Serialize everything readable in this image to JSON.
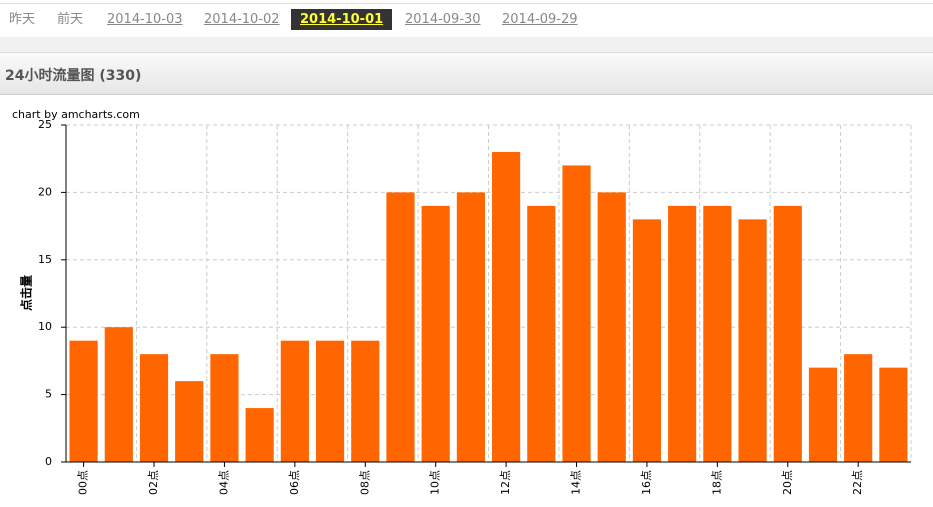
{
  "nav": {
    "items": [
      "昨天",
      "前天",
      "2014-10-03",
      "2014-10-02",
      "2014-10-01",
      "2014-09-30",
      "2014-09-29"
    ],
    "active": 4
  },
  "header": {
    "title": "24小时流量图 (330)"
  },
  "chart_data": {
    "type": "bar",
    "credit": "chart by amcharts.com",
    "y_label": "点击量",
    "categories": [
      "00点",
      null,
      "02点",
      null,
      "04点",
      null,
      "06点",
      null,
      "08点",
      null,
      "10点",
      null,
      "12点",
      null,
      "14点",
      null,
      "16点",
      null,
      "18点",
      null,
      "20点",
      null,
      "22点",
      null
    ],
    "values": [
      9,
      10,
      8,
      6,
      8,
      4,
      9,
      9,
      9,
      20,
      19,
      20,
      23,
      19,
      22,
      20,
      18,
      19,
      19,
      18,
      19,
      7,
      8,
      7
    ],
    "color": "#ff6600",
    "ylim": [
      0,
      25
    ],
    "yticks": [
      0,
      5,
      10,
      15,
      20,
      25
    ],
    "grid": true
  }
}
